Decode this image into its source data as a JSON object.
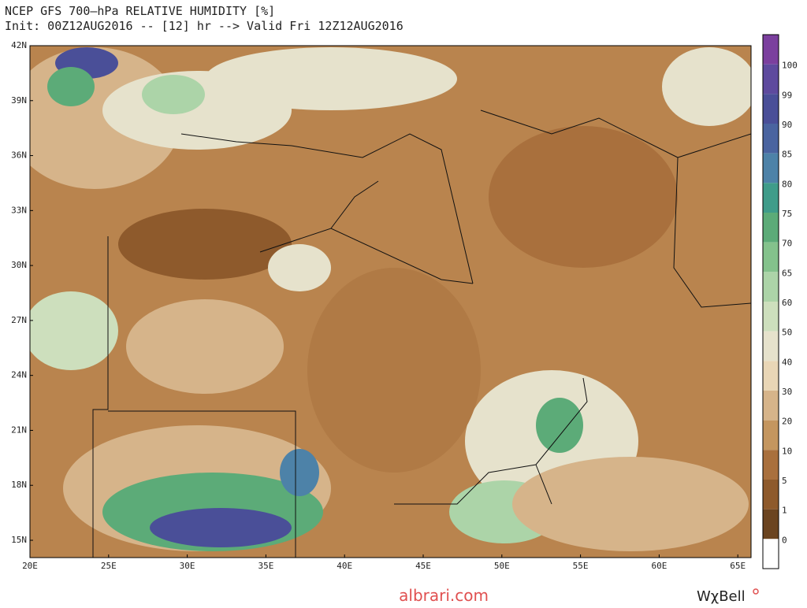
{
  "header": {
    "title": "NCEP GFS 700—hPa RELATIVE HUMIDITY [%]",
    "subtitle": "Init: 00Z12AUG2016 -- [12] hr --> Valid Fri 12Z12AUG2016"
  },
  "map": {
    "lat_labels": [
      "42N",
      "39N",
      "36N",
      "33N",
      "30N",
      "27N",
      "24N",
      "21N",
      "18N",
      "15N"
    ],
    "lon_labels": [
      "20E",
      "25E",
      "30E",
      "35E",
      "40E",
      "45E",
      "50E",
      "55E",
      "60E",
      "65E"
    ]
  },
  "colorbar": {
    "labels": [
      "100",
      "99",
      "90",
      "85",
      "80",
      "75",
      "70",
      "65",
      "60",
      "50",
      "40",
      "30",
      "20",
      "10",
      "5",
      "1",
      "0"
    ],
    "colors": [
      "#7b3f9e",
      "#5e4a9e",
      "#4a4f98",
      "#4a64a0",
      "#4d82a8",
      "#3f9c8a",
      "#5cab78",
      "#84c28c",
      "#acd4a8",
      "#cddfbd",
      "#e6e2cc",
      "#e9d6b6",
      "#d6b48a",
      "#c4965f",
      "#a9703d",
      "#8e5a2c",
      "#6b4420",
      "#ffffff"
    ]
  },
  "footer": {
    "watermark": "albrari.com",
    "brand": "WχBell"
  }
}
